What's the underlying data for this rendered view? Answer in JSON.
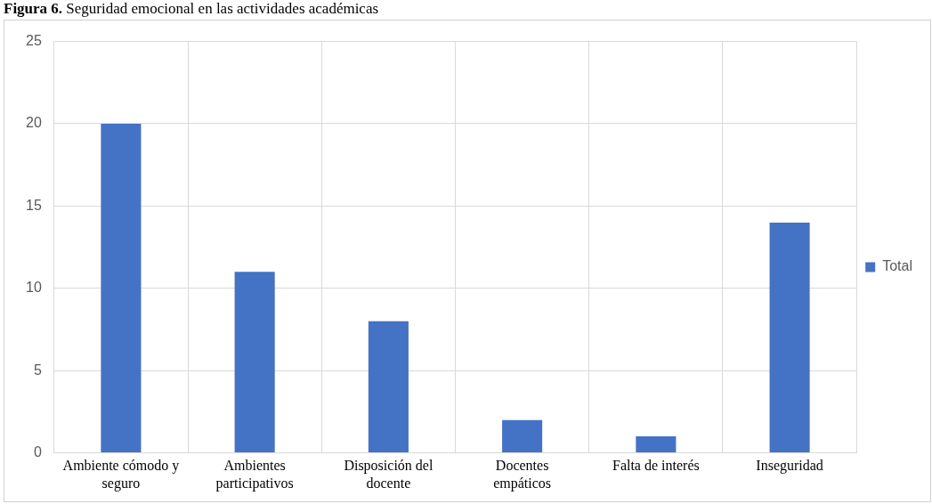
{
  "chart_data": {
    "type": "bar",
    "title": "Figura 6. Seguridad emocional en las actividades académicas",
    "categories": [
      "Ambiente cómodo y seguro",
      "Ambientes participativos",
      "Disposición del docente",
      "Docentes empáticos",
      "Falta de interés",
      "Inseguridad"
    ],
    "series": [
      {
        "name": "Total",
        "color": "#4472c4",
        "values": [
          20,
          11,
          8,
          2,
          1,
          14
        ]
      }
    ],
    "ylim": [
      0,
      25
    ],
    "yticks": [
      0,
      5,
      10,
      15,
      20,
      25
    ],
    "grid": true,
    "legend": "right"
  }
}
